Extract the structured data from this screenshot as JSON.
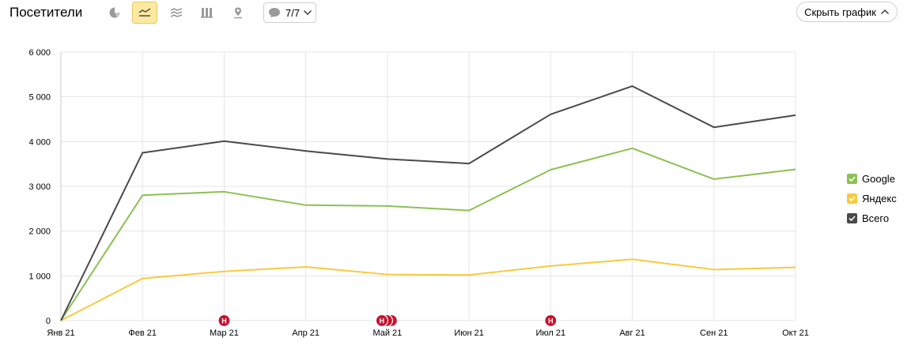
{
  "header": {
    "title": "Посетители",
    "annotations_label": "7/7",
    "hide_chart_label": "Скрыть график"
  },
  "toolbar": {
    "icons": [
      "pie-chart-icon",
      "line-chart-icon",
      "area-chart-icon",
      "bar-chart-icon",
      "map-icon"
    ],
    "active": "line-chart-icon"
  },
  "colors": {
    "google": "#8cc152",
    "yandex": "#f6cb3e",
    "total": "#4a4a4a",
    "annotation": "#c8102e",
    "grid": "#e5e5e5",
    "active_tool": "#fde9a0"
  },
  "chart_data": {
    "type": "line",
    "categories": [
      "Янв 21",
      "Фев 21",
      "Мар 21",
      "Апр 21",
      "Май 21",
      "Июн 21",
      "Июл 21",
      "Авг 21",
      "Сен 21",
      "Окт 21"
    ],
    "y_ticks": [
      "0",
      "1 000",
      "2 000",
      "3 000",
      "4 000",
      "5 000",
      "6 000"
    ],
    "ylim": [
      0,
      6000
    ],
    "series": [
      {
        "name": "Google",
        "color": "#8cc152",
        "values": [
          0,
          2800,
          2880,
          2580,
          2560,
          2460,
          3370,
          3850,
          3160,
          3380
        ]
      },
      {
        "name": "Яндекс",
        "color": "#f6cb3e",
        "values": [
          0,
          940,
          1100,
          1200,
          1030,
          1020,
          1220,
          1370,
          1140,
          1190
        ]
      },
      {
        "name": "Всего",
        "color": "#4a4a4a",
        "values": [
          0,
          3750,
          4010,
          3790,
          3610,
          3510,
          4610,
          5240,
          4320,
          4590
        ]
      }
    ],
    "annotations": [
      {
        "category_index": 2,
        "label": "Н",
        "count": 1
      },
      {
        "category_index": 4,
        "label": "Н",
        "count": 3
      },
      {
        "category_index": 6,
        "label": "Н",
        "count": 1
      }
    ],
    "grid": true,
    "legend_position": "right"
  }
}
